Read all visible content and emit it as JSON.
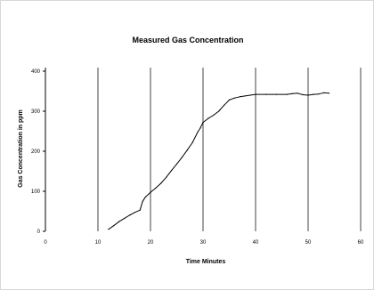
{
  "chart_data": {
    "type": "line",
    "title": "Measured Gas Concentration",
    "xlabel": "Time Minutes",
    "ylabel": "Gas Concentration in ppm",
    "xlim": [
      0,
      60
    ],
    "ylim": [
      0,
      400
    ],
    "x_ticks": [
      "0",
      "10",
      "20",
      "30",
      "40",
      "50",
      "60"
    ],
    "y_ticks": [
      "0",
      "100",
      "200",
      "300",
      "400"
    ],
    "grid": "vertical",
    "legend": "none",
    "series": [
      {
        "line_color": "#000000",
        "points": [
          [
            12,
            5
          ],
          [
            13,
            14
          ],
          [
            14,
            24
          ],
          [
            15,
            32
          ],
          [
            16,
            40
          ],
          [
            17,
            47
          ],
          [
            18,
            53
          ],
          [
            18.5,
            75
          ],
          [
            19,
            85
          ],
          [
            20,
            97
          ],
          [
            21,
            108
          ],
          [
            22,
            120
          ],
          [
            23,
            135
          ],
          [
            24,
            152
          ],
          [
            25,
            168
          ],
          [
            26,
            185
          ],
          [
            27,
            203
          ],
          [
            28,
            222
          ],
          [
            29,
            248
          ],
          [
            29.5,
            258
          ],
          [
            30,
            272
          ],
          [
            31,
            282
          ],
          [
            32,
            290
          ],
          [
            33,
            300
          ],
          [
            34,
            315
          ],
          [
            35,
            328
          ],
          [
            36,
            333
          ],
          [
            37,
            336
          ],
          [
            38,
            338
          ],
          [
            39,
            340
          ],
          [
            40,
            342
          ],
          [
            42,
            342
          ],
          [
            44,
            342
          ],
          [
            46,
            342
          ],
          [
            47,
            344
          ],
          [
            48,
            345
          ],
          [
            49,
            341
          ],
          [
            50,
            340
          ],
          [
            51,
            342
          ],
          [
            52,
            343
          ],
          [
            53,
            346
          ],
          [
            54,
            345
          ]
        ]
      }
    ]
  }
}
